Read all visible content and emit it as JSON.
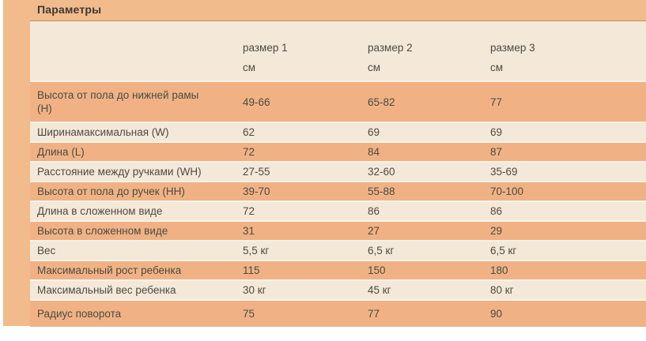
{
  "page": {
    "title": "Параметры",
    "colors": {
      "page_background": "#F2BB8C",
      "row_orange": "#F0B284",
      "row_cream": "#F4E8D8",
      "separator": "#FAF2E8",
      "text": "#4D4B44",
      "title_text": "#3B3A33"
    }
  },
  "table": {
    "header": {
      "cols": [
        {
          "label": "размер 1",
          "unit": "см"
        },
        {
          "label": "размер 2",
          "unit": "см"
        },
        {
          "label": "размер 3",
          "unit": "см"
        }
      ]
    },
    "rows": [
      {
        "label": "Высота от пола до нижней рамы\n(H)",
        "values": [
          "49-66",
          "65-82",
          "77"
        ]
      },
      {
        "label": "Ширинамаксимальная (W)",
        "values": [
          "62",
          "69",
          "69"
        ]
      },
      {
        "label": "Длина (L)",
        "values": [
          "72",
          "84",
          "87"
        ]
      },
      {
        "label": "Расстояние между ручками (WH)",
        "values": [
          "27-55",
          "32-60",
          "35-69"
        ]
      },
      {
        "label": "Высота от пола до ручек (HH)",
        "values": [
          "39-70",
          "55-88",
          "70-100"
        ]
      },
      {
        "label": "Длина в сложенном виде",
        "values": [
          "72",
          "86",
          "86"
        ]
      },
      {
        "label": "Высота в сложенном виде",
        "values": [
          "31",
          "27",
          "29"
        ]
      },
      {
        "label": "Вес",
        "values": [
          "5,5 кг",
          "6,5 кг",
          "6,5 кг"
        ]
      },
      {
        "label": "Максимальный рост ребенка",
        "values": [
          "115",
          "150",
          "180"
        ]
      },
      {
        "label": "Максимальный вес ребенка",
        "values": [
          "30 кг",
          "45 кг",
          "80 кг"
        ]
      },
      {
        "label": "Радиус поворота",
        "values": [
          "75",
          "77",
          "90"
        ]
      }
    ]
  }
}
